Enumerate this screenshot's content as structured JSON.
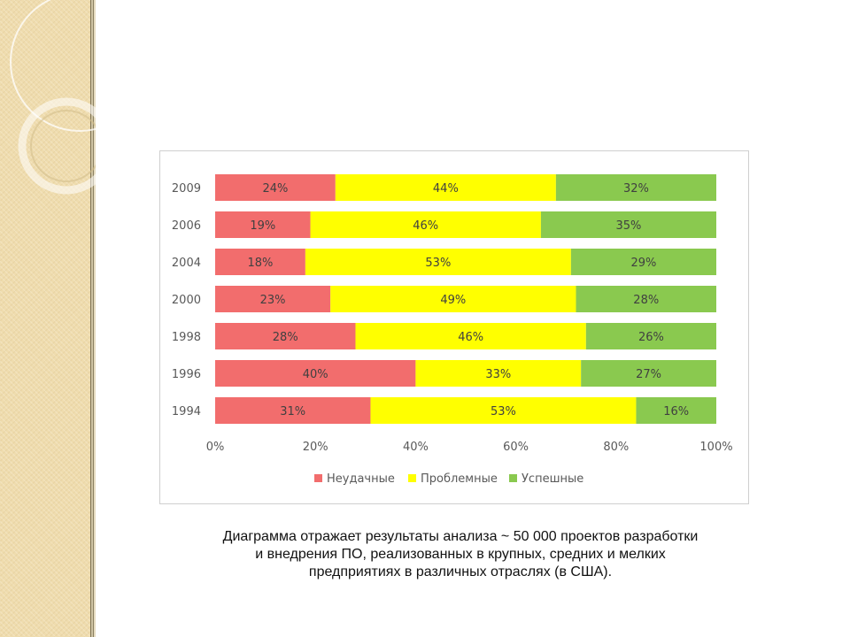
{
  "theme": {
    "sidebar_color": "#efdcae",
    "circle_color": "#ffffff"
  },
  "chart_data": {
    "type": "bar",
    "orientation": "horizontal",
    "stacked": true,
    "percent": true,
    "categories": [
      "2009",
      "2006",
      "2004",
      "2000",
      "1998",
      "1996",
      "1994"
    ],
    "series": [
      {
        "name": "Неудачные",
        "color": "#f26d6d",
        "values": [
          24,
          19,
          18,
          23,
          28,
          40,
          31
        ]
      },
      {
        "name": "Проблемные",
        "color": "#ffff00",
        "values": [
          44,
          46,
          53,
          49,
          46,
          33,
          53
        ]
      },
      {
        "name": "Успешные",
        "color": "#8ac94f",
        "values": [
          32,
          35,
          29,
          28,
          26,
          27,
          16
        ]
      }
    ],
    "xlim": [
      0,
      100
    ],
    "x_ticks": [
      "0%",
      "20%",
      "40%",
      "60%",
      "80%",
      "100%"
    ],
    "data_labels": true,
    "legend_position": "bottom",
    "grid": false
  },
  "caption": {
    "lines": [
      "Диаграмма отражает результаты анализа ~ 50 000 проектов разработки",
      "и внедрения ПО, реализованных в крупных, средних и мелких",
      "предприятиях в различных отраслях (в США)."
    ]
  }
}
